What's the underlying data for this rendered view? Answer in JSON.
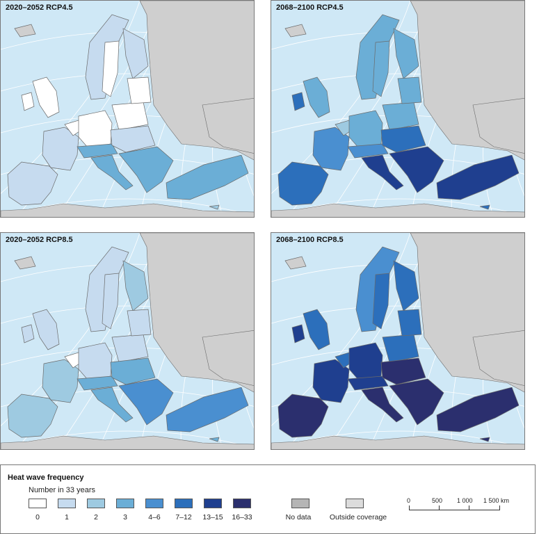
{
  "panels": [
    {
      "id": "p1",
      "title": "2020–2052 RCP4.5"
    },
    {
      "id": "p2",
      "title": "2068–2100 RCP4.5"
    },
    {
      "id": "p3",
      "title": "2020–2052 RCP8.5"
    },
    {
      "id": "p4",
      "title": "2068–2100 RCP8.5"
    }
  ],
  "legend": {
    "title": "Heat wave frequency",
    "subtitle": "Number in 33 years",
    "classes": [
      {
        "label": "0",
        "color": "#ffffff"
      },
      {
        "label": "1",
        "color": "#c6dbef"
      },
      {
        "label": "2",
        "color": "#9ecae1"
      },
      {
        "label": "3",
        "color": "#6baed6"
      },
      {
        "label": "4–6",
        "color": "#4a8fd0"
      },
      {
        "label": "7–12",
        "color": "#2c6fbb"
      },
      {
        "label": "13–15",
        "color": "#1f3f8f"
      },
      {
        "label": "16–33",
        "color": "#2b2f6e"
      }
    ],
    "no_data": {
      "label": "No data",
      "color": "#b5b5b5"
    },
    "outside": {
      "label": "Outside coverage",
      "color": "#dcdcdc"
    },
    "scale": {
      "ticks": [
        "0",
        "500",
        "1 000",
        "1 500 km"
      ]
    }
  },
  "colors": {
    "sea": "#cfe8f6",
    "land": "#cfcfcf",
    "border": "#6a6a6a"
  }
}
